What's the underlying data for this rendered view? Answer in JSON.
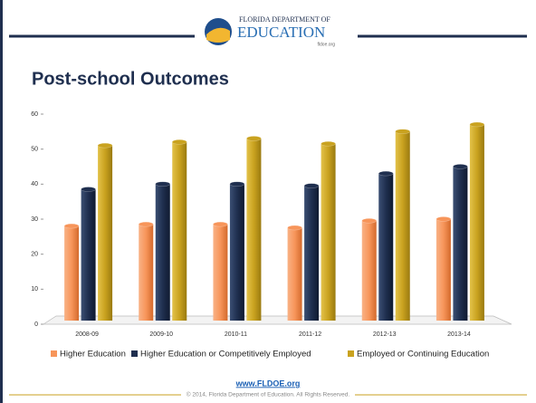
{
  "header": {
    "agency": "FLORIDA DEPARTMENT OF",
    "name": "EDUCATION",
    "site": "fldoe.org"
  },
  "chart_data": {
    "type": "bar",
    "title": "Post-school Outcomes",
    "categories": [
      "2008-09",
      "2009-10",
      "2010-11",
      "2011-12",
      "2012-13",
      "2013-14"
    ],
    "series": [
      {
        "name": "Higher Education",
        "color": "#f7955a",
        "values": [
          27,
          27.5,
          27.5,
          26.5,
          28.5,
          29
        ]
      },
      {
        "name": "Higher Education or Competitively Employed",
        "color": "#1f2f4f",
        "values": [
          37.5,
          39,
          39,
          38.5,
          42,
          44
        ]
      },
      {
        "name": "Employed or Continuing Education",
        "color": "#c9a21f",
        "values": [
          50,
          51,
          52,
          50.5,
          54,
          56
        ]
      }
    ],
    "ylim": [
      0,
      60
    ],
    "yticks": [
      0,
      10,
      20,
      30,
      40,
      50,
      60
    ],
    "grid": false,
    "legend": "bottom"
  },
  "footer": {
    "link": "www.FLDOE.org",
    "copyright": "© 2014, Florida Department of Education. All Rights Reserved."
  }
}
